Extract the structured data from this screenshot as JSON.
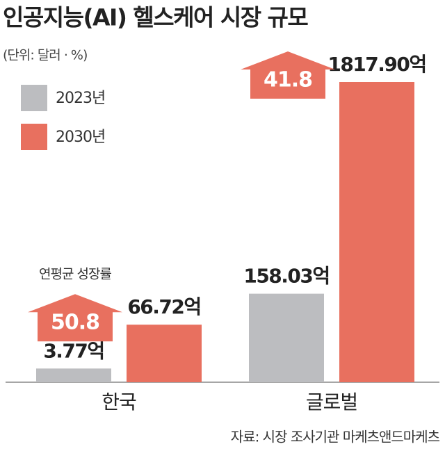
{
  "chart_data": {
    "type": "bar",
    "title": "인공지능(AI) 헬스케어 시장 규모",
    "subtitle": "(단위: 달러 · %)",
    "categories": [
      "한국",
      "글로벌"
    ],
    "series": [
      {
        "name": "2023년",
        "color": "#bcbdc0",
        "values": [
          3.77,
          158.03
        ],
        "value_labels": [
          "3.77억",
          "158.03억"
        ]
      },
      {
        "name": "2030년",
        "color": "#e8705f",
        "values": [
          66.72,
          1817.9
        ],
        "value_labels": [
          "66.72억",
          "1817.90억"
        ]
      }
    ],
    "growth_rate": {
      "label": "연평균 성장률",
      "values": [
        50.8,
        41.8
      ],
      "color": "#e8705f"
    },
    "source": "자료: 시장 조사기관 마케츠앤드마케츠"
  }
}
